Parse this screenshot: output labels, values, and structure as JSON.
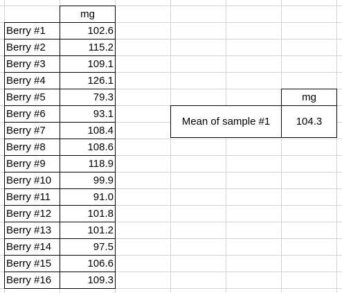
{
  "sheet": {
    "unit_header": "mg",
    "rows": [
      {
        "label": "Berry #1",
        "value": "102.6"
      },
      {
        "label": "Berry #2",
        "value": "115.2"
      },
      {
        "label": "Berry #3",
        "value": "109.1"
      },
      {
        "label": "Berry #4",
        "value": "126.1"
      },
      {
        "label": "Berry #5",
        "value": "79.3"
      },
      {
        "label": "Berry #6",
        "value": "93.1"
      },
      {
        "label": "Berry #7",
        "value": "108.4"
      },
      {
        "label": "Berry #8",
        "value": "108.6"
      },
      {
        "label": "Berry #9",
        "value": "118.9"
      },
      {
        "label": "Berry #10",
        "value": "99.9"
      },
      {
        "label": "Berry #11",
        "value": "91.0"
      },
      {
        "label": "Berry #12",
        "value": "101.8"
      },
      {
        "label": "Berry #13",
        "value": "101.2"
      },
      {
        "label": "Berry #14",
        "value": "97.5"
      },
      {
        "label": "Berry #15",
        "value": "106.6"
      },
      {
        "label": "Berry #16",
        "value": "109.3"
      }
    ],
    "summary": {
      "unit_header": "mg",
      "label": "Mean of sample #1",
      "value": "104.3"
    }
  }
}
